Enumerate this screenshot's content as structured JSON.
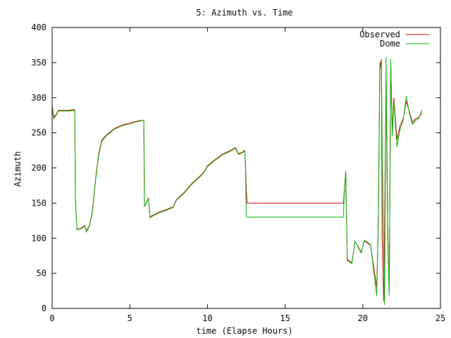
{
  "chart_data": {
    "type": "line",
    "title": "5: Azimuth vs. Time",
    "xlabel": "time (Elapse Hours)",
    "ylabel": "Azimuth",
    "xlim": [
      0,
      25
    ],
    "ylim": [
      0,
      400
    ],
    "xticks": [
      0,
      5,
      10,
      15,
      20,
      25
    ],
    "yticks": [
      0,
      50,
      100,
      150,
      200,
      250,
      300,
      350,
      400
    ],
    "grid": false,
    "legend_position": "top-right",
    "series": [
      {
        "name": "Observed",
        "color": "#cc0000",
        "points": [
          [
            0.0,
            290
          ],
          [
            0.1,
            272
          ],
          [
            0.25,
            276
          ],
          [
            0.4,
            282
          ],
          [
            1.0,
            282
          ],
          [
            1.45,
            283
          ],
          [
            1.5,
            152
          ],
          [
            1.6,
            112
          ],
          [
            1.9,
            115
          ],
          [
            2.1,
            118
          ],
          [
            2.2,
            110
          ],
          [
            2.4,
            118
          ],
          [
            2.6,
            140
          ],
          [
            2.8,
            185
          ],
          [
            3.0,
            220
          ],
          [
            3.2,
            240
          ],
          [
            3.5,
            247
          ],
          [
            4.0,
            256
          ],
          [
            4.5,
            261
          ],
          [
            5.0,
            264
          ],
          [
            5.5,
            267
          ],
          [
            5.9,
            268
          ],
          [
            5.95,
            145
          ],
          [
            6.2,
            157
          ],
          [
            6.3,
            130
          ],
          [
            6.5,
            133
          ],
          [
            7.0,
            138
          ],
          [
            7.5,
            142
          ],
          [
            7.8,
            145
          ],
          [
            8.0,
            155
          ],
          [
            8.5,
            165
          ],
          [
            9.0,
            178
          ],
          [
            9.5,
            188
          ],
          [
            9.8,
            195
          ],
          [
            10.0,
            203
          ],
          [
            10.5,
            212
          ],
          [
            11.0,
            220
          ],
          [
            11.5,
            225
          ],
          [
            11.8,
            229
          ],
          [
            12.0,
            220
          ],
          [
            12.2,
            222
          ],
          [
            12.4,
            225
          ],
          [
            12.45,
            205
          ],
          [
            12.5,
            170
          ],
          [
            12.55,
            150
          ],
          [
            18.75,
            150
          ],
          [
            18.8,
            165
          ],
          [
            18.9,
            193
          ],
          [
            19.0,
            70
          ],
          [
            19.3,
            65
          ],
          [
            19.5,
            95
          ],
          [
            19.7,
            88
          ],
          [
            19.9,
            80
          ],
          [
            20.1,
            96
          ],
          [
            20.5,
            90
          ],
          [
            20.9,
            30
          ],
          [
            21.0,
            115
          ],
          [
            21.1,
            340
          ],
          [
            21.2,
            355
          ],
          [
            21.25,
            100
          ],
          [
            21.35,
            10
          ],
          [
            21.5,
            320
          ],
          [
            21.6,
            120
          ],
          [
            21.7,
            25
          ],
          [
            21.8,
            345
          ],
          [
            21.9,
            250
          ],
          [
            22.0,
            300
          ],
          [
            22.2,
            240
          ],
          [
            22.4,
            260
          ],
          [
            22.6,
            270
          ],
          [
            22.8,
            295
          ],
          [
            23.0,
            280
          ],
          [
            23.2,
            265
          ],
          [
            23.4,
            270
          ],
          [
            23.6,
            272
          ],
          [
            23.8,
            278
          ]
        ]
      },
      {
        "name": "Dome",
        "color": "#00aa00",
        "points": [
          [
            0.0,
            285
          ],
          [
            0.1,
            270
          ],
          [
            0.25,
            275
          ],
          [
            0.4,
            281
          ],
          [
            1.0,
            281
          ],
          [
            1.45,
            282
          ],
          [
            1.5,
            150
          ],
          [
            1.6,
            112
          ],
          [
            1.9,
            114
          ],
          [
            2.1,
            117
          ],
          [
            2.2,
            109
          ],
          [
            2.4,
            117
          ],
          [
            2.6,
            138
          ],
          [
            2.8,
            183
          ],
          [
            3.0,
            218
          ],
          [
            3.2,
            238
          ],
          [
            3.5,
            246
          ],
          [
            4.0,
            255
          ],
          [
            4.5,
            260
          ],
          [
            5.0,
            263
          ],
          [
            5.5,
            266
          ],
          [
            5.9,
            268
          ],
          [
            5.95,
            145
          ],
          [
            6.2,
            156
          ],
          [
            6.3,
            129
          ],
          [
            6.5,
            132
          ],
          [
            7.0,
            137
          ],
          [
            7.5,
            141
          ],
          [
            7.8,
            144
          ],
          [
            8.0,
            154
          ],
          [
            8.5,
            164
          ],
          [
            9.0,
            177
          ],
          [
            9.5,
            187
          ],
          [
            9.8,
            194
          ],
          [
            10.0,
            202
          ],
          [
            10.5,
            211
          ],
          [
            11.0,
            219
          ],
          [
            11.5,
            224
          ],
          [
            11.8,
            228
          ],
          [
            12.0,
            219
          ],
          [
            12.2,
            221
          ],
          [
            12.4,
            224
          ],
          [
            12.45,
            200
          ],
          [
            12.5,
            130
          ],
          [
            18.75,
            130
          ],
          [
            18.8,
            160
          ],
          [
            18.9,
            196
          ],
          [
            19.0,
            68
          ],
          [
            19.3,
            64
          ],
          [
            19.5,
            96
          ],
          [
            19.7,
            87
          ],
          [
            19.9,
            79
          ],
          [
            20.1,
            97
          ],
          [
            20.5,
            91
          ],
          [
            20.9,
            18
          ],
          [
            21.0,
            120
          ],
          [
            21.1,
            350
          ],
          [
            21.2,
            345
          ],
          [
            21.3,
            140
          ],
          [
            21.4,
            5
          ],
          [
            21.5,
            358
          ],
          [
            21.6,
            110
          ],
          [
            21.7,
            18
          ],
          [
            21.8,
            355
          ],
          [
            21.9,
            245
          ],
          [
            22.0,
            295
          ],
          [
            22.2,
            230
          ],
          [
            22.4,
            255
          ],
          [
            22.6,
            268
          ],
          [
            22.8,
            302
          ],
          [
            23.0,
            278
          ],
          [
            23.2,
            262
          ],
          [
            23.4,
            268
          ],
          [
            23.6,
            270
          ],
          [
            23.8,
            282
          ]
        ]
      }
    ]
  }
}
